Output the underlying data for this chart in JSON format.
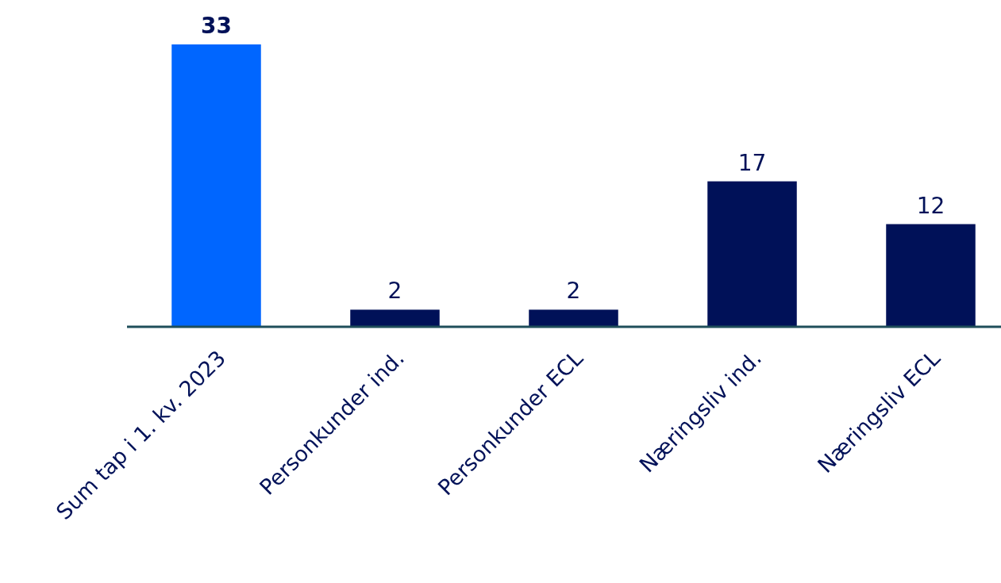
{
  "chart_data": {
    "type": "bar",
    "categories": [
      "Sum tap i 1. kv. 2023",
      "Personkunder ind.",
      "Personkunder ECL",
      "Næringsliv ind.",
      "Næringsliv ECL"
    ],
    "values": [
      33,
      2,
      2,
      17,
      12
    ],
    "colors": [
      "#0066ff",
      "#001158",
      "#001158",
      "#001158",
      "#001158"
    ],
    "data_labels": true
  }
}
